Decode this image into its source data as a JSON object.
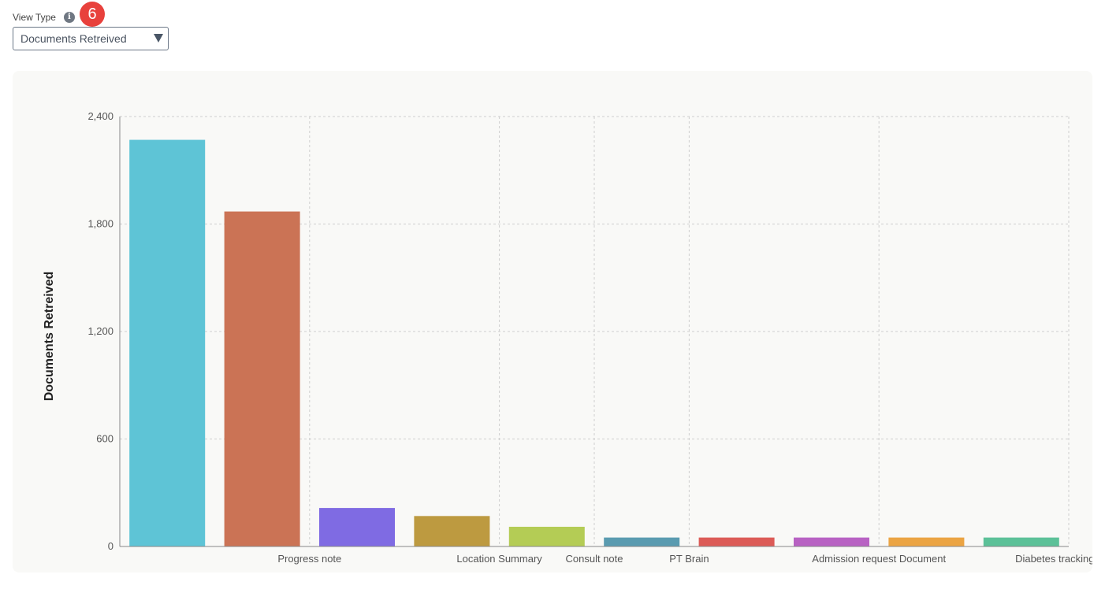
{
  "view_type": {
    "label": "View Type",
    "info_icon": "i",
    "step_badge": "6",
    "selected": "Documents Retreived"
  },
  "chart_data": {
    "type": "bar",
    "ylabel": "Documents Retreived",
    "ylim": [
      0,
      2400
    ],
    "yticks": [
      "0",
      "600",
      "1,200",
      "1,800",
      "2,400"
    ],
    "ytick_values": [
      0,
      600,
      1200,
      1800,
      2400
    ],
    "grid": true,
    "categories": [
      "",
      "Progress note",
      "",
      "Location Summary",
      "Consult note",
      "PT Brain",
      "",
      "Admission request Document",
      "",
      "Diabetes tracking panel"
    ],
    "values": [
      2270,
      1870,
      215,
      170,
      110,
      50,
      50,
      50,
      50,
      50
    ],
    "colors": [
      "#5ec4d6",
      "#cb7355",
      "#7f6be3",
      "#bd9a40",
      "#b4cc55",
      "#5a9bb0",
      "#dc5b57",
      "#b862c3",
      "#eba443",
      "#5cc198"
    ]
  }
}
